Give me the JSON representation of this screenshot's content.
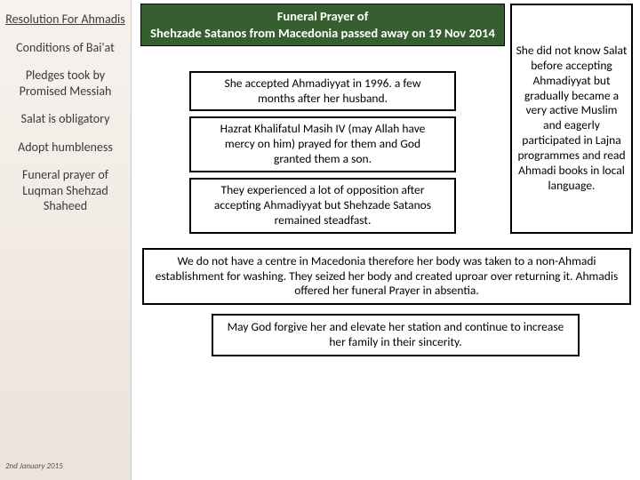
{
  "sidebar": {
    "items": [
      {
        "label": "Resolution For Ahmadis",
        "active": true
      },
      {
        "label": "Conditions of Bai'at",
        "active": false
      },
      {
        "label": "Pledges took by Promised Messiah",
        "active": false
      },
      {
        "label": "Salat is obligatory",
        "active": false
      },
      {
        "label": "Adopt humbleness",
        "active": false
      },
      {
        "label": "Funeral prayer of Luqman Shehzad Shaheed",
        "active": false
      }
    ],
    "date": "2nd January 2015"
  },
  "header": {
    "line1": "Funeral Prayer of",
    "line2": "Shehzade Satanos from Macedonia passed away on 19 Nov 2014"
  },
  "right_box": "She did not know Salat before accepting Ahmadiyyat but gradually became a very active Muslim and eagerly participated in Lajna programmes and read Ahmadi books in local language.",
  "info_boxes": [
    "She accepted Ahmadiyyat in 1996. a few months after her husband.",
    "Hazrat Khalifatul Masih IV (may Allah have mercy on him) prayed for them and God granted them a son.",
    "They experienced a lot of opposition after accepting Ahmadiyyat but Shehzade Satanos remained steadfast."
  ],
  "wide_box": "We do not have a centre in Macedonia therefore her body was taken to a non-Ahmadi establishment for washing. They seized her body and created uproar over returning it. Ahmadis offered her funeral Prayer in absentia.",
  "footer_box": "May God forgive her and elevate her station and continue to increase her family in their sincerity."
}
